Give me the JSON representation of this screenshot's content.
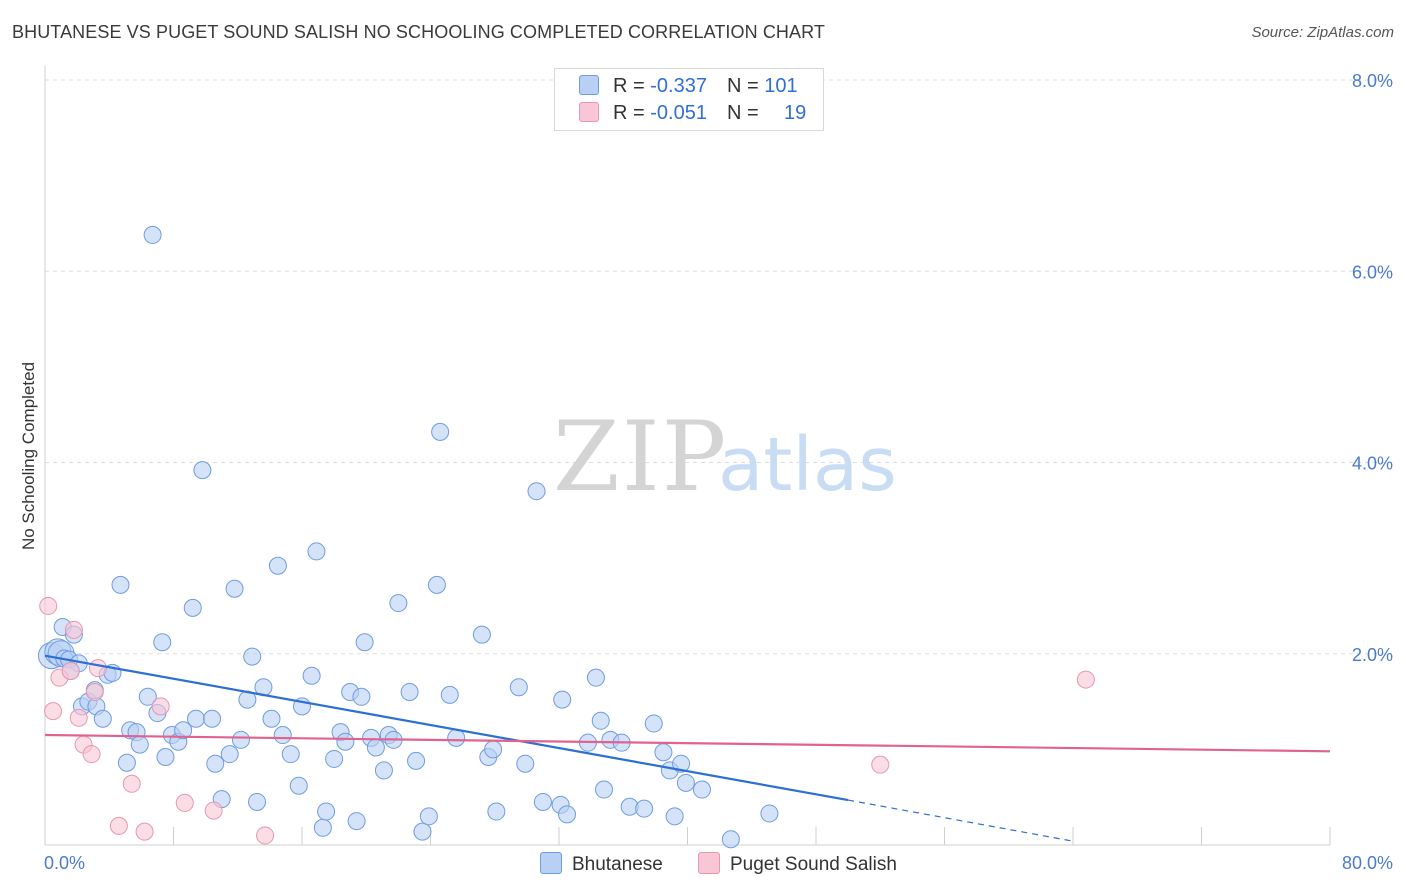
{
  "header": {
    "title": "BHUTANESE VS PUGET SOUND SALISH NO SCHOOLING COMPLETED CORRELATION CHART",
    "source": "Source: ZipAtlas.com"
  },
  "watermark": {
    "zip": "ZIP",
    "atlas": "atlas"
  },
  "colors": {
    "blue_fill": "#b7d0f3",
    "blue_stroke": "#6f9ce0",
    "blue_line": "#2d6fd2",
    "pink_fill": "#f8c6d5",
    "pink_stroke": "#e896b1",
    "pink_line": "#e2628f",
    "grid": "#dddddd",
    "tick_label": "#4a7bd0"
  },
  "legend": {
    "rows": [
      {
        "r_label": "R = ",
        "r_value": "-0.337",
        "n_label": "N = ",
        "n_value": "101"
      },
      {
        "r_label": "R = ",
        "r_value": "-0.051",
        "n_label": "N = ",
        "n_value": "19"
      }
    ]
  },
  "chart_data": {
    "type": "scatter",
    "xlabel": "",
    "ylabel": "No Schooling Completed",
    "xlim": [
      0,
      80
    ],
    "ylim": [
      0,
      8
    ],
    "x_tick_labels": [
      "0.0%",
      "80.0%"
    ],
    "y_ticks": [
      2,
      4,
      6,
      8
    ],
    "y_tick_labels": [
      "2.0%",
      "4.0%",
      "6.0%",
      "8.0%"
    ],
    "grid": "horizontal dashed",
    "legend_position": "top-center",
    "series": [
      {
        "name": "Bhutanese",
        "color": "#b7d0f3",
        "r": -0.337,
        "n": 101,
        "trend": {
          "x": [
            0,
            50
          ],
          "y": [
            1.98,
            0.47
          ],
          "dashed_extension": {
            "x": [
              50,
              64
            ],
            "y": [
              0.47,
              0.04
            ]
          }
        },
        "points": [
          [
            0.4,
            1.98
          ],
          [
            0.8,
            2.02
          ],
          [
            1.0,
            2.0
          ],
          [
            1.2,
            1.95
          ],
          [
            1.1,
            2.28
          ],
          [
            1.5,
            1.94
          ],
          [
            1.8,
            2.2
          ],
          [
            2.1,
            1.9
          ],
          [
            1.6,
            1.82
          ],
          [
            2.3,
            1.45
          ],
          [
            2.7,
            1.5
          ],
          [
            3.1,
            1.62
          ],
          [
            3.2,
            1.45
          ],
          [
            3.6,
            1.32
          ],
          [
            3.9,
            1.78
          ],
          [
            4.2,
            1.8
          ],
          [
            4.7,
            2.72
          ],
          [
            5.1,
            0.86
          ],
          [
            5.3,
            1.2
          ],
          [
            5.7,
            1.18
          ],
          [
            5.9,
            1.05
          ],
          [
            6.4,
            1.55
          ],
          [
            6.7,
            6.38
          ],
          [
            7.0,
            1.38
          ],
          [
            7.3,
            2.12
          ],
          [
            7.5,
            0.92
          ],
          [
            7.9,
            1.15
          ],
          [
            8.3,
            1.08
          ],
          [
            8.6,
            1.2
          ],
          [
            9.2,
            2.48
          ],
          [
            9.4,
            1.32
          ],
          [
            9.8,
            3.92
          ],
          [
            10.4,
            1.32
          ],
          [
            10.6,
            0.85
          ],
          [
            11.0,
            0.48
          ],
          [
            11.5,
            0.95
          ],
          [
            11.8,
            2.68
          ],
          [
            12.2,
            1.1
          ],
          [
            12.6,
            1.52
          ],
          [
            12.9,
            1.97
          ],
          [
            13.2,
            0.45
          ],
          [
            13.6,
            1.65
          ],
          [
            14.1,
            1.32
          ],
          [
            14.5,
            2.92
          ],
          [
            14.8,
            1.15
          ],
          [
            15.3,
            0.95
          ],
          [
            15.8,
            0.62
          ],
          [
            16.0,
            1.45
          ],
          [
            16.6,
            1.77
          ],
          [
            16.9,
            3.07
          ],
          [
            17.3,
            0.18
          ],
          [
            17.5,
            0.35
          ],
          [
            18.0,
            0.9
          ],
          [
            18.4,
            1.18
          ],
          [
            18.7,
            1.08
          ],
          [
            19.0,
            1.6
          ],
          [
            19.4,
            0.25
          ],
          [
            19.7,
            1.55
          ],
          [
            19.9,
            2.12
          ],
          [
            20.3,
            1.12
          ],
          [
            20.6,
            1.02
          ],
          [
            21.1,
            0.78
          ],
          [
            21.4,
            1.15
          ],
          [
            21.7,
            1.1
          ],
          [
            22.0,
            2.53
          ],
          [
            22.7,
            1.6
          ],
          [
            23.1,
            0.88
          ],
          [
            23.5,
            0.14
          ],
          [
            23.9,
            0.3
          ],
          [
            24.4,
            2.72
          ],
          [
            24.6,
            4.32
          ],
          [
            25.2,
            1.57
          ],
          [
            25.6,
            1.12
          ],
          [
            27.2,
            2.2
          ],
          [
            27.6,
            0.92
          ],
          [
            27.9,
            1.0
          ],
          [
            28.1,
            0.35
          ],
          [
            29.5,
            1.65
          ],
          [
            29.9,
            0.85
          ],
          [
            30.6,
            3.7
          ],
          [
            31.0,
            0.45
          ],
          [
            32.1,
            0.42
          ],
          [
            32.5,
            0.32
          ],
          [
            32.2,
            1.52
          ],
          [
            33.8,
            1.07
          ],
          [
            34.3,
            1.75
          ],
          [
            34.8,
            0.58
          ],
          [
            34.6,
            1.3
          ],
          [
            35.2,
            1.1
          ],
          [
            35.9,
            1.07
          ],
          [
            36.4,
            0.4
          ],
          [
            37.3,
            0.38
          ],
          [
            37.9,
            1.27
          ],
          [
            38.5,
            0.97
          ],
          [
            38.9,
            0.78
          ],
          [
            39.2,
            0.3
          ],
          [
            39.6,
            0.85
          ],
          [
            39.9,
            0.65
          ],
          [
            40.9,
            0.58
          ],
          [
            45.1,
            0.33
          ],
          [
            42.7,
            0.06
          ]
        ]
      },
      {
        "name": "Puget Sound Salish",
        "color": "#f8c6d5",
        "r": -0.051,
        "n": 19,
        "trend": {
          "x": [
            0,
            80
          ],
          "y": [
            1.15,
            0.98
          ]
        },
        "points": [
          [
            0.2,
            2.5
          ],
          [
            0.5,
            1.4
          ],
          [
            0.9,
            1.75
          ],
          [
            1.6,
            1.82
          ],
          [
            1.8,
            2.25
          ],
          [
            2.1,
            1.33
          ],
          [
            2.4,
            1.05
          ],
          [
            2.9,
            0.95
          ],
          [
            3.1,
            1.6
          ],
          [
            3.3,
            1.85
          ],
          [
            4.6,
            0.2
          ],
          [
            5.4,
            0.64
          ],
          [
            6.2,
            0.14
          ],
          [
            7.2,
            1.45
          ],
          [
            8.7,
            0.44
          ],
          [
            10.5,
            0.36
          ],
          [
            13.7,
            0.1
          ],
          [
            64.8,
            1.73
          ],
          [
            52.0,
            0.84
          ]
        ]
      }
    ]
  },
  "bottom_legend": {
    "items": [
      {
        "label": "Bhutanese"
      },
      {
        "label": "Puget Sound Salish"
      }
    ]
  }
}
